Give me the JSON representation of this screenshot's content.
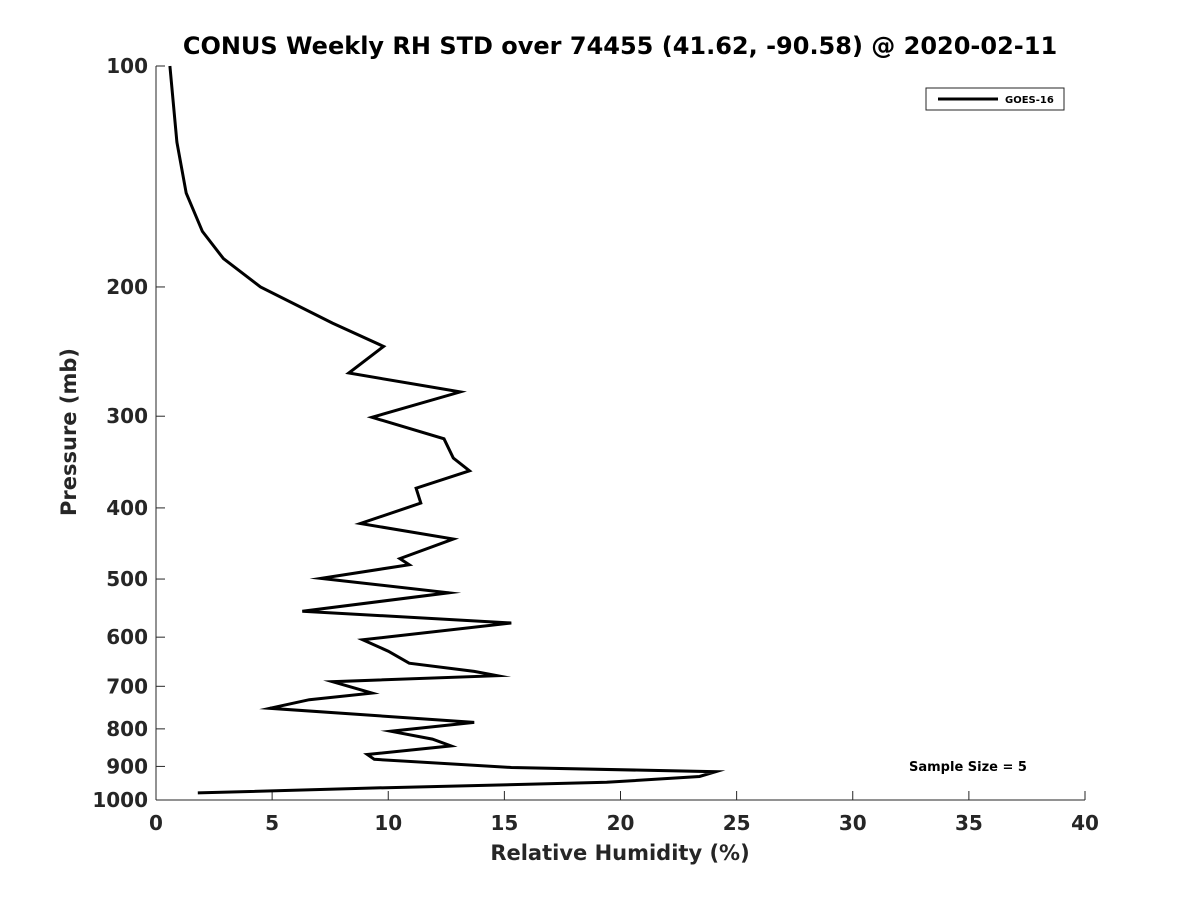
{
  "chart_data": {
    "type": "line",
    "title": "CONUS Weekly RH STD over 74455 (41.62, -90.58) @ 2020-02-11",
    "xlabel": "Relative Humidity (%)",
    "ylabel": "Pressure (mb)",
    "xlim": [
      0,
      40
    ],
    "ylim": [
      100,
      1000
    ],
    "yscale": "log",
    "y_reversed": true,
    "xticks": [
      "0",
      "5",
      "10",
      "15",
      "20",
      "25",
      "30",
      "35",
      "40"
    ],
    "yticks": [
      "100",
      "200",
      "300",
      "400",
      "500",
      "600",
      "700",
      "800",
      "900",
      "1000"
    ],
    "grid": false,
    "legend_position": "top-right",
    "annotation": "Sample Size = 5",
    "series": [
      {
        "name": "GOES-16",
        "color": "#000000",
        "points": [
          [
            0.6,
            100
          ],
          [
            0.9,
            127
          ],
          [
            1.3,
            149
          ],
          [
            2.0,
            168
          ],
          [
            2.9,
            183
          ],
          [
            4.5,
            200
          ],
          [
            7.6,
            224
          ],
          [
            9.8,
            241
          ],
          [
            8.3,
            262
          ],
          [
            13.1,
            278
          ],
          [
            9.3,
            301
          ],
          [
            12.4,
            322
          ],
          [
            12.8,
            342
          ],
          [
            13.5,
            356
          ],
          [
            11.2,
            376
          ],
          [
            11.4,
            394
          ],
          [
            8.8,
            420
          ],
          [
            12.8,
            441
          ],
          [
            10.5,
            469
          ],
          [
            10.9,
            478
          ],
          [
            7.1,
            499
          ],
          [
            12.6,
            522
          ],
          [
            6.3,
            553
          ],
          [
            15.3,
            574
          ],
          [
            8.9,
            605
          ],
          [
            10.0,
            627
          ],
          [
            10.9,
            651
          ],
          [
            13.7,
            668
          ],
          [
            14.7,
            677
          ],
          [
            7.6,
            690
          ],
          [
            9.3,
            715
          ],
          [
            6.6,
            730
          ],
          [
            4.9,
            750
          ],
          [
            13.7,
            784
          ],
          [
            10.1,
            806
          ],
          [
            11.9,
            826
          ],
          [
            12.7,
            844
          ],
          [
            9.1,
            867
          ],
          [
            9.4,
            880
          ],
          [
            15.3,
            903
          ],
          [
            24.1,
            915
          ],
          [
            23.4,
            929
          ],
          [
            19.4,
            946
          ],
          [
            9.9,
            962
          ],
          [
            1.8,
            978
          ]
        ]
      }
    ]
  }
}
